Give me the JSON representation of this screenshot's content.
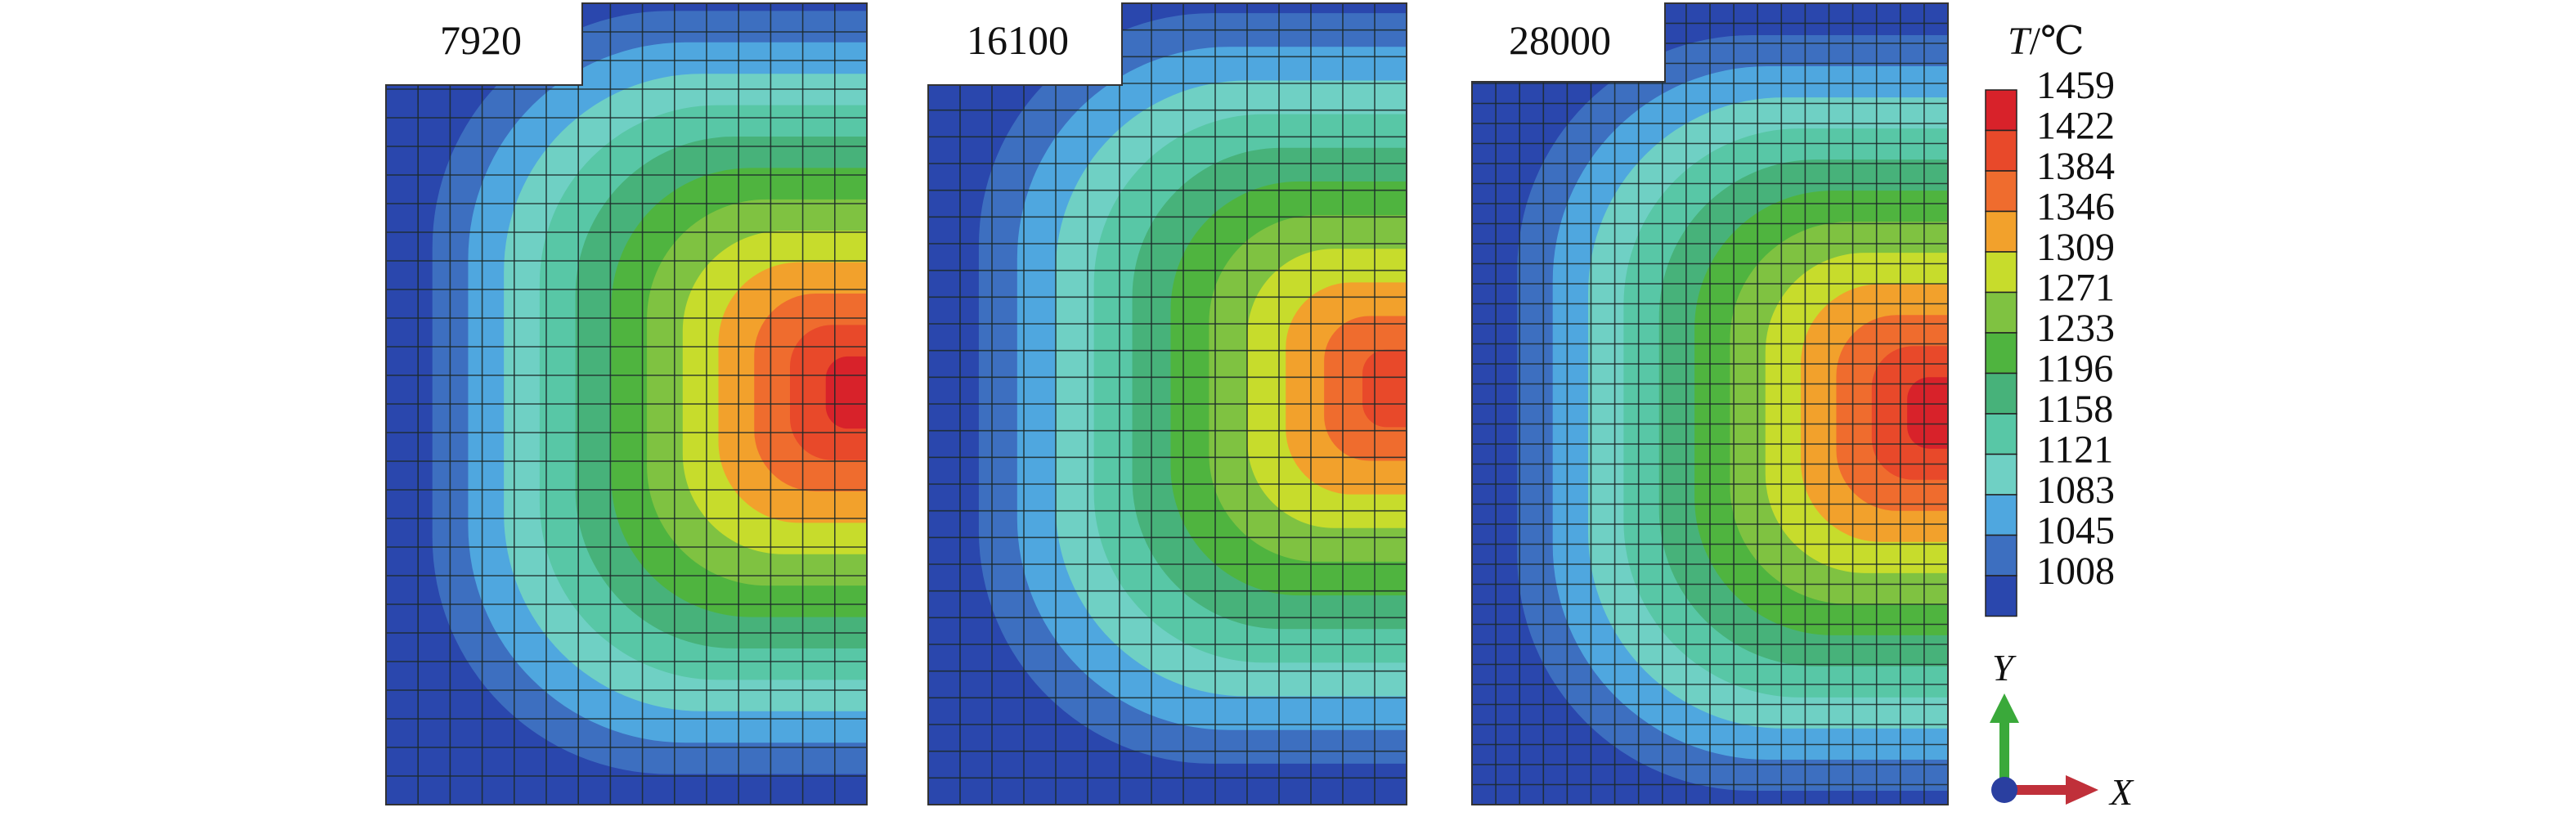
{
  "panels": [
    {
      "label": "7920",
      "hot_center_temp": 1459
    },
    {
      "label": "16100",
      "hot_center_temp": 1422
    },
    {
      "label": "28000",
      "hot_center_temp": 1459
    }
  ],
  "legend": {
    "title_var": "T",
    "title_unit": "/℃",
    "entries": [
      {
        "value": "1459",
        "color": "#d8222a"
      },
      {
        "value": "1422",
        "color": "#e8492a"
      },
      {
        "value": "1384",
        "color": "#ef6c2e"
      },
      {
        "value": "1346",
        "color": "#f2a12c"
      },
      {
        "value": "1309",
        "color": "#c7dc2c"
      },
      {
        "value": "1271",
        "color": "#7fc241"
      },
      {
        "value": "1233",
        "color": "#4fb43f"
      },
      {
        "value": "1196",
        "color": "#47b27a"
      },
      {
        "value": "1158",
        "color": "#58c7a6"
      },
      {
        "value": "1121",
        "color": "#6fd0c4"
      },
      {
        "value": "1083",
        "color": "#4fa7df"
      },
      {
        "value": "1045",
        "color": "#3d6fc0"
      },
      {
        "value": "1008",
        "color": "#2a47ad"
      }
    ]
  },
  "axes": {
    "x_label": "X",
    "y_label": "Y",
    "x_color": "#c0303a",
    "y_color": "#3aa93a",
    "origin_color": "#2a3fa0"
  }
}
